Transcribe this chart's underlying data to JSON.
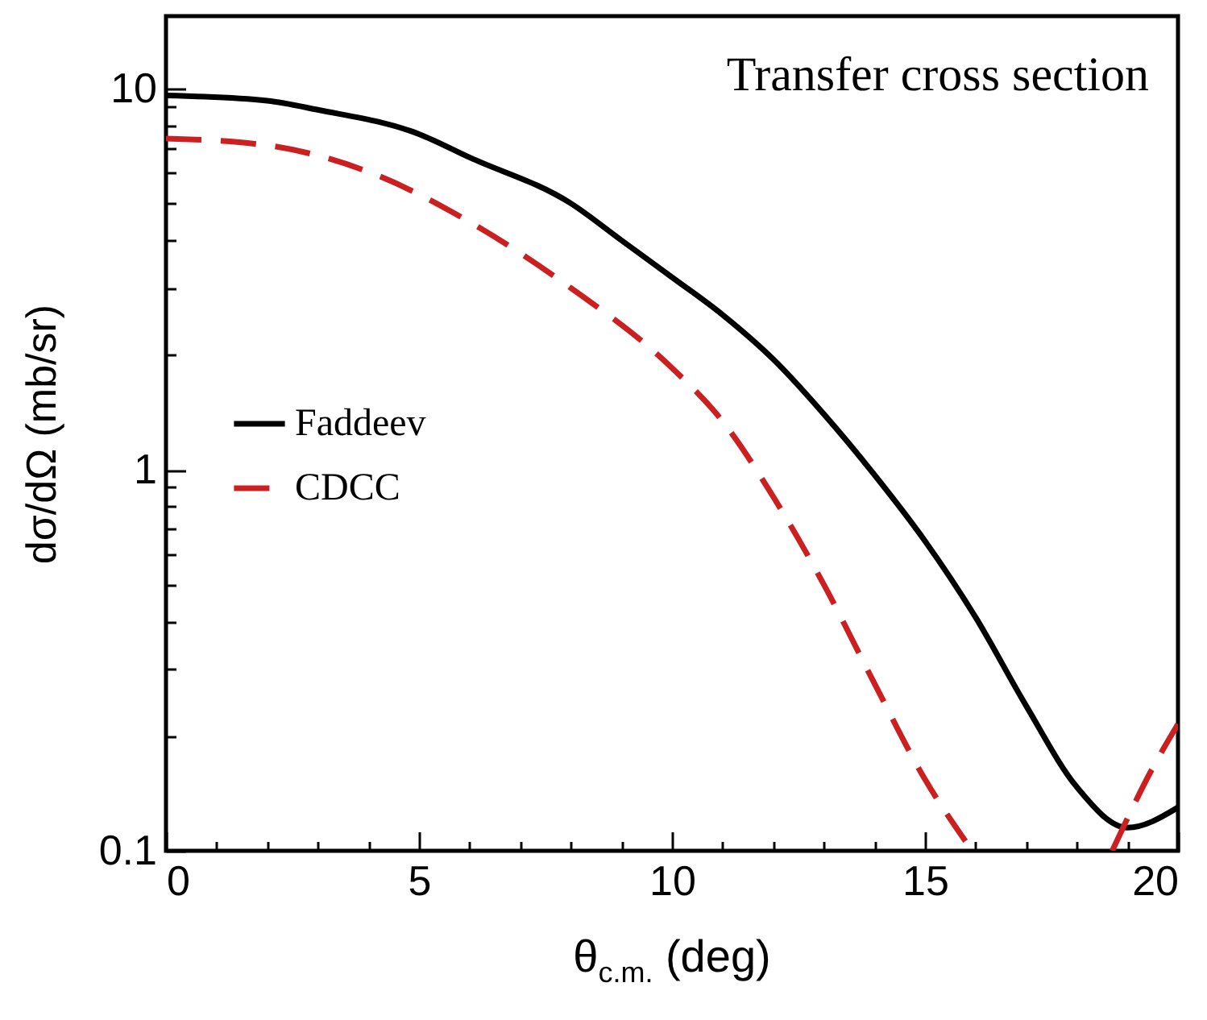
{
  "chart_data": {
    "type": "line",
    "xlabel": "θ$_{c.m.}$ (deg)",
    "ylabel": "dσ/dΩ (mb/sr)",
    "annotations": [
      "Transfer cross section"
    ],
    "series": [
      {
        "name": "Faddeev",
        "color": "#000000",
        "line_style": "solid",
        "x": [
          0,
          2,
          3,
          5,
          6,
          8,
          9,
          10,
          11,
          12,
          13,
          14,
          15,
          16,
          17,
          18,
          19,
          20
        ],
        "values": [
          9.6,
          9.3,
          8.8,
          7.6,
          6.6,
          5.0,
          4.0,
          3.2,
          2.55,
          1.95,
          1.4,
          0.97,
          0.65,
          0.41,
          0.24,
          0.147,
          0.115,
          0.13
        ]
      },
      {
        "name": "CDCC",
        "color": "#cc2020",
        "line_style": "dashed",
        "x": [
          0,
          2,
          4,
          6,
          8,
          10,
          11,
          12,
          13,
          14,
          15,
          15.8,
          17,
          18.7,
          19.5,
          20
        ],
        "values": [
          7.4,
          7.1,
          6.05,
          4.47,
          3.0,
          1.85,
          1.34,
          0.85,
          0.5,
          0.275,
          0.154,
          0.106,
          null,
          0.1,
          0.165,
          0.215
        ]
      }
    ],
    "xlim": [
      0,
      20
    ],
    "xticks": [
      0,
      {
        "value": 1,
        "label": null
      },
      {
        "value": 2,
        "label": null
      },
      {
        "value": 3,
        "label": null
      },
      {
        "value": 4,
        "label": null
      },
      5,
      {
        "value": 6,
        "label": null
      },
      {
        "value": 7,
        "label": null
      },
      {
        "value": 8,
        "label": null
      },
      {
        "value": 9,
        "label": null
      },
      10,
      {
        "value": 11,
        "label": null
      },
      {
        "value": 12,
        "label": null
      },
      {
        "value": 13,
        "label": null
      },
      {
        "value": 14,
        "label": null
      },
      15,
      {
        "value": 16,
        "label": null
      },
      {
        "value": 17,
        "label": null
      },
      {
        "value": 18,
        "label": null
      },
      {
        "value": 19,
        "label": null
      },
      20
    ],
    "ylim": [
      0.1,
      15.5
    ],
    "yticks": [
      0.1,
      {
        "value": 0.2,
        "label": null
      },
      {
        "value": 0.3,
        "label": null
      },
      {
        "value": 0.4,
        "label": null
      },
      {
        "value": 0.5,
        "label": null
      },
      {
        "value": 0.6,
        "label": null
      },
      {
        "value": 0.7,
        "label": null
      },
      {
        "value": 0.8,
        "label": null
      },
      {
        "value": 0.9,
        "label": null
      },
      1,
      {
        "value": 2,
        "label": null
      },
      {
        "value": 3,
        "label": null
      },
      {
        "value": 4,
        "label": null
      },
      {
        "value": 5,
        "label": null
      },
      {
        "value": 6,
        "label": null
      },
      {
        "value": 7,
        "label": null
      },
      {
        "value": 8,
        "label": null
      },
      {
        "value": 9,
        "label": null
      },
      10
    ],
    "log": "y",
    "grid": false,
    "legend": "left",
    "marker": "none"
  }
}
